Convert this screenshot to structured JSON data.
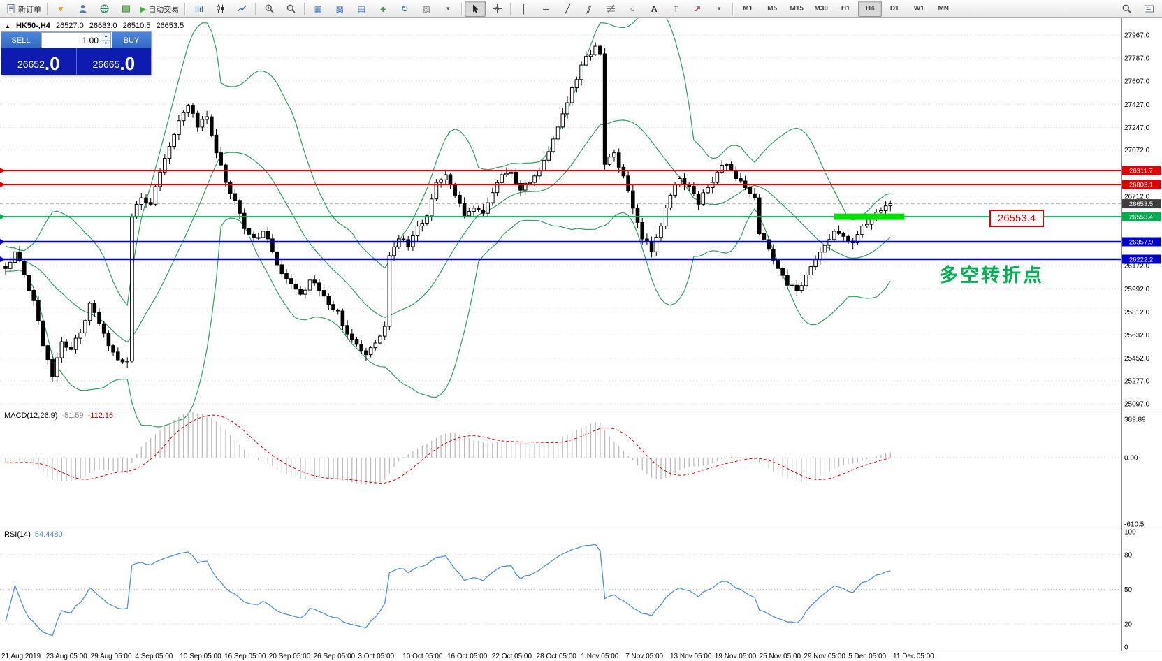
{
  "toolbar": {
    "groups": [
      [
        {
          "name": "new-order-button",
          "glyph": "doc",
          "label": "新订单"
        }
      ],
      [
        {
          "name": "funnel-icon",
          "glyph": "funnel"
        },
        {
          "name": "accounts-icon",
          "glyph": "person"
        },
        {
          "name": "web-terminal-icon",
          "glyph": "globe"
        },
        {
          "name": "news-icon",
          "glyph": "book"
        },
        {
          "name": "autotrading-button",
          "glyph": "play",
          "label": "自动交易"
        }
      ],
      [
        {
          "name": "bar-chart-icon",
          "glyph": "bars"
        },
        {
          "name": "candlestick-chart-icon",
          "glyph": "candles"
        },
        {
          "name": "line-chart-icon",
          "glyph": "linechart"
        }
      ],
      [
        {
          "name": "zoom-in-icon",
          "glyph": "zoomin"
        },
        {
          "name": "zoom-out-icon",
          "glyph": "zoomout"
        }
      ],
      [
        {
          "name": "tile-windows-icon",
          "glyph": "tile"
        },
        {
          "name": "cascade-windows-icon",
          "glyph": "cascade"
        },
        {
          "name": "arrange-windows-icon",
          "glyph": "arrange"
        },
        {
          "name": "indicators-icon",
          "glyph": "plus"
        },
        {
          "name": "period-icon",
          "glyph": "cycle"
        },
        {
          "name": "templates-icon",
          "glyph": "pic"
        },
        {
          "name": "templates-caret-icon",
          "glyph": "caret"
        }
      ],
      [
        {
          "name": "cursor-icon",
          "glyph": "cursor",
          "active": true
        },
        {
          "name": "crosshair-icon",
          "glyph": "cross"
        }
      ],
      [
        {
          "name": "vertical-line-icon",
          "glyph": "vline"
        },
        {
          "name": "horizontal-line-icon",
          "glyph": "hline"
        },
        {
          "name": "trendline-icon",
          "glyph": "tline"
        },
        {
          "name": "channel-icon",
          "glyph": "channel"
        },
        {
          "name": "fibonacci-icon",
          "glyph": "fibo"
        },
        {
          "name": "shapes-icon",
          "glyph": "ellipse"
        },
        {
          "name": "text-icon",
          "glyph": "textA"
        },
        {
          "name": "label-icon",
          "glyph": "textT"
        },
        {
          "name": "arrows-icon",
          "glyph": "arrow"
        },
        {
          "name": "arrows-caret-icon",
          "glyph": "caret"
        }
      ]
    ],
    "timeframes": [
      {
        "label": "M1"
      },
      {
        "label": "M5"
      },
      {
        "label": "M15"
      },
      {
        "label": "M30"
      },
      {
        "label": "H1"
      },
      {
        "label": "H4",
        "active": true
      },
      {
        "label": "D1"
      },
      {
        "label": "W1"
      },
      {
        "label": "MN"
      }
    ],
    "right_icons": [
      {
        "name": "search-icon",
        "glyph": "mag"
      },
      {
        "name": "quotes-icon",
        "glyph": "card"
      }
    ]
  },
  "symbol_info": {
    "symbol": "HK50-,H4",
    "open": "26527.0",
    "high": "26683.0",
    "low": "26510.5",
    "close": "26653.5"
  },
  "one_click": {
    "sell_label": "SELL",
    "buy_label": "BUY",
    "volume": "1.00",
    "sell_price": "26652",
    "sell_price_frac": ".0",
    "buy_price": "26665",
    "buy_price_frac": ".0"
  },
  "annotations": {
    "price_flag": "26553.4",
    "turning_point_text": "多空转折点",
    "turning_point_color": "#00b050"
  },
  "chart_data": {
    "type": "candlestick",
    "symbol": "HK50-,H4",
    "timeframe": "H4",
    "style": {
      "bull_fill": "#ffffff",
      "bear_fill": "#000000",
      "outline": "#000000",
      "grid": "#d6d6d6"
    },
    "price_axis": {
      "labels": [
        {
          "v": 27967.0,
          "t": "27967.0",
          "s": "n"
        },
        {
          "v": 27787.0,
          "t": "27787.0",
          "s": "n"
        },
        {
          "v": 27607.0,
          "t": "27607.0",
          "s": "n"
        },
        {
          "v": 27427.0,
          "t": "27427.0",
          "s": "n"
        },
        {
          "v": 27247.0,
          "t": "27247.0",
          "s": "n"
        },
        {
          "v": 27072.0,
          "t": "27072.0",
          "s": "n"
        },
        {
          "v": 26911.7,
          "t": "26911.7",
          "s": "red"
        },
        {
          "v": 26803.1,
          "t": "26803.1",
          "s": "red"
        },
        {
          "v": 26712.0,
          "t": "26712.0",
          "s": "n"
        },
        {
          "v": 26653.5,
          "t": "26653.5",
          "s": "cur"
        },
        {
          "v": 26553.4,
          "t": "26553.4",
          "s": "green"
        },
        {
          "v": 26357.9,
          "t": "26357.9",
          "s": "blue"
        },
        {
          "v": 26222.2,
          "t": "26222.2",
          "s": "blue"
        },
        {
          "v": 26172.0,
          "t": "26172.0",
          "s": "n"
        },
        {
          "v": 25992.0,
          "t": "25992.0",
          "s": "n"
        },
        {
          "v": 25812.0,
          "t": "25812.0",
          "s": "n"
        },
        {
          "v": 25632.0,
          "t": "25632.0",
          "s": "n"
        },
        {
          "v": 25452.0,
          "t": "25452.0",
          "s": "n"
        },
        {
          "v": 25277.0,
          "t": "25277.0",
          "s": "n"
        },
        {
          "v": 25097.0,
          "t": "25097.0",
          "s": "n"
        }
      ]
    },
    "candles_total": 190,
    "close_anchors": [
      [
        0,
        26150
      ],
      [
        2,
        26280
      ],
      [
        4,
        26100
      ],
      [
        6,
        25900
      ],
      [
        8,
        25550
      ],
      [
        10,
        25310
      ],
      [
        12,
        25580
      ],
      [
        14,
        25520
      ],
      [
        16,
        25650
      ],
      [
        18,
        25880
      ],
      [
        20,
        25720
      ],
      [
        22,
        25550
      ],
      [
        24,
        25440
      ],
      [
        26,
        25430
      ],
      [
        27,
        26550
      ],
      [
        29,
        26700
      ],
      [
        31,
        26650
      ],
      [
        33,
        26900
      ],
      [
        35,
        27100
      ],
      [
        37,
        27300
      ],
      [
        39,
        27420
      ],
      [
        41,
        27250
      ],
      [
        43,
        27330
      ],
      [
        45,
        27050
      ],
      [
        47,
        26820
      ],
      [
        49,
        26680
      ],
      [
        51,
        26460
      ],
      [
        53,
        26390
      ],
      [
        55,
        26440
      ],
      [
        57,
        26280
      ],
      [
        59,
        26110
      ],
      [
        61,
        26030
      ],
      [
        63,
        25950
      ],
      [
        65,
        26060
      ],
      [
        67,
        25980
      ],
      [
        69,
        25870
      ],
      [
        71,
        25820
      ],
      [
        73,
        25640
      ],
      [
        75,
        25560
      ],
      [
        77,
        25480
      ],
      [
        79,
        25570
      ],
      [
        81,
        25700
      ],
      [
        82,
        26250
      ],
      [
        84,
        26380
      ],
      [
        86,
        26320
      ],
      [
        88,
        26480
      ],
      [
        90,
        26560
      ],
      [
        92,
        26820
      ],
      [
        94,
        26880
      ],
      [
        96,
        26720
      ],
      [
        98,
        26560
      ],
      [
        100,
        26620
      ],
      [
        102,
        26580
      ],
      [
        104,
        26740
      ],
      [
        106,
        26880
      ],
      [
        108,
        26900
      ],
      [
        110,
        26760
      ],
      [
        112,
        26820
      ],
      [
        114,
        26910
      ],
      [
        116,
        27060
      ],
      [
        118,
        27250
      ],
      [
        120,
        27440
      ],
      [
        122,
        27620
      ],
      [
        124,
        27800
      ],
      [
        126,
        27880
      ],
      [
        127,
        27820
      ],
      [
        128,
        26960
      ],
      [
        130,
        27050
      ],
      [
        132,
        26870
      ],
      [
        134,
        26620
      ],
      [
        136,
        26380
      ],
      [
        138,
        26280
      ],
      [
        140,
        26480
      ],
      [
        142,
        26720
      ],
      [
        144,
        26850
      ],
      [
        146,
        26790
      ],
      [
        148,
        26650
      ],
      [
        150,
        26780
      ],
      [
        152,
        26900
      ],
      [
        154,
        26960
      ],
      [
        156,
        26850
      ],
      [
        158,
        26780
      ],
      [
        160,
        26700
      ],
      [
        161,
        26420
      ],
      [
        163,
        26300
      ],
      [
        165,
        26150
      ],
      [
        167,
        26020
      ],
      [
        169,
        25980
      ],
      [
        171,
        26100
      ],
      [
        173,
        26220
      ],
      [
        175,
        26330
      ],
      [
        177,
        26440
      ],
      [
        179,
        26400
      ],
      [
        181,
        26350
      ],
      [
        183,
        26480
      ],
      [
        185,
        26540
      ],
      [
        187,
        26600
      ],
      [
        189,
        26653.5
      ]
    ],
    "bollinger": {
      "period": 20,
      "deviation": 2,
      "color": "#2f9e60"
    },
    "horizontal_lines": [
      {
        "value": 26911.7,
        "color": "#e00000",
        "width": 2
      },
      {
        "value": 26803.1,
        "color": "#e00000",
        "width": 2
      },
      {
        "value": 26553.4,
        "color": "#00b050",
        "width": 2
      },
      {
        "value": 26357.9,
        "color": "#0000cc",
        "width": 2.5
      },
      {
        "value": 26222.2,
        "color": "#0000cc",
        "width": 2.5
      }
    ],
    "highlight_segment": {
      "value": 26553.4,
      "from_index": 177,
      "to_index": 192,
      "color": "#00e000",
      "thickness": 9
    },
    "bid_line": {
      "value": 26653.5,
      "color": "#b4b4b4"
    },
    "macd": {
      "label": "MACD(12,26,9)",
      "value_main": "-51.59",
      "value_signal": "-112.16",
      "axis_labels": [
        {
          "v": 389.89,
          "t": "389.89"
        },
        {
          "v": 0,
          "t": "0.00"
        },
        {
          "v": -610.5,
          "t": "-610.5"
        }
      ],
      "axis_range": [
        389.89,
        -610.5
      ],
      "histogram_color": "#b8b8b8",
      "signal_color": "#e00000"
    },
    "rsi": {
      "label": "RSI(14)",
      "value": "54.4480",
      "axis_labels": [
        {
          "v": 100,
          "t": "100"
        },
        {
          "v": 80,
          "t": "80"
        },
        {
          "v": 50,
          "t": "50"
        },
        {
          "v": 20,
          "t": "20"
        },
        {
          "v": 0,
          "t": "0"
        }
      ],
      "levels": [
        80,
        50,
        20
      ],
      "color": "#4f8fdf"
    },
    "time_labels": [
      "21 Aug 2019",
      "23 Aug 05:00",
      "29 Aug 05:00",
      "4 Sep 05:00",
      "10 Sep 05:00",
      "16 Sep 05:00",
      "20 Sep 05:00",
      "26 Sep 05:00",
      "3 Oct 05:00",
      "10 Oct 05:00",
      "16 Oct 05:00",
      "22 Oct 05:00",
      "28 Oct 05:00",
      "1 Nov 05:00",
      "7 Nov 05:00",
      "13 Nov 05:00",
      "19 Nov 05:00",
      "25 Nov 05:00",
      "29 Nov 05:00",
      "5 Dec 05:00",
      "11 Dec 05:00"
    ]
  }
}
